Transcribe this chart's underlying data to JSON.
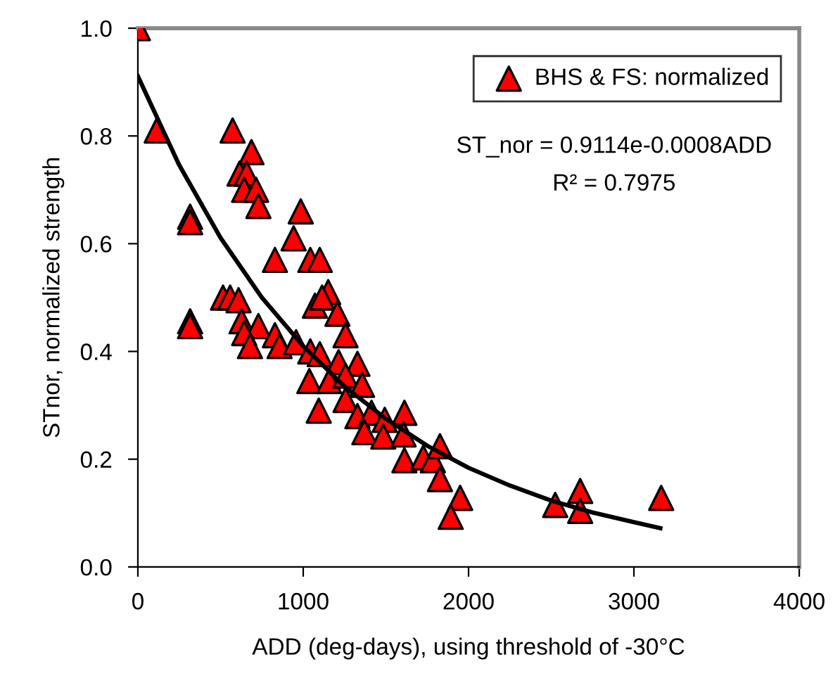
{
  "chart_data": {
    "type": "scatter",
    "xlabel": "ADD (deg-days), using threshold of -30°C",
    "ylabel": "STnor, normalized strength",
    "xlim": [
      0,
      4000
    ],
    "xticks": [
      0,
      1000,
      2000,
      3000,
      4000
    ],
    "ylim": [
      0,
      1
    ],
    "yticks": [
      {
        "value": 0,
        "label": "0.0"
      },
      {
        "value": 0.2,
        "label": "0.2"
      },
      {
        "value": 0.4,
        "label": "0.4"
      },
      {
        "value": 0.6,
        "label": "0.6"
      },
      {
        "value": 0.8,
        "label": "0.8"
      },
      {
        "value": 1,
        "label": "1.0"
      }
    ],
    "grid": false,
    "legend": "top right",
    "marker": "triangle",
    "annotations": [
      "ST_nor = 0.9114e-0.0008ADD",
      "R² = 0.7975"
    ],
    "series": [
      {
        "name": "BHS & FS: normalized",
        "color": "#ff0000",
        "x": [
          0,
          114,
          573,
          687,
          615,
          658,
          643,
          715,
          729,
          316,
          316,
          985,
          942,
          829,
          1043,
          1100,
          1151,
          1071,
          1114,
          1207,
          1256,
          316,
          316,
          515,
          558,
          609,
          627,
          729,
          643,
          678,
          829,
          857,
          957,
          1043,
          1100,
          1214,
          1328,
          1037,
          1157,
          1256,
          1356,
          1094,
          1256,
          1328,
          1413,
          1493,
          1612,
          1370,
          1484,
          1607,
          1612,
          1726,
          1784,
          1827,
          1827,
          1949,
          1892,
          2524,
          2675,
          2675,
          3165
        ],
        "values": [
          1.0,
          0.81,
          0.81,
          0.77,
          0.73,
          0.73,
          0.7,
          0.7,
          0.67,
          0.65,
          0.64,
          0.66,
          0.61,
          0.57,
          0.57,
          0.57,
          0.51,
          0.485,
          0.5,
          0.47,
          0.43,
          0.456,
          0.447,
          0.5,
          0.5,
          0.495,
          0.456,
          0.447,
          0.434,
          0.41,
          0.43,
          0.41,
          0.417,
          0.4,
          0.395,
          0.38,
          0.377,
          0.345,
          0.345,
          0.355,
          0.338,
          0.29,
          0.31,
          0.28,
          0.286,
          0.273,
          0.286,
          0.25,
          0.242,
          0.246,
          0.198,
          0.203,
          0.198,
          0.224,
          0.163,
          0.128,
          0.093,
          0.115,
          0.141,
          0.104,
          0.128
        ]
      },
      {
        "type": "line",
        "color": "#000000",
        "marker": "none",
        "line_style": "solid",
        "x": [
          0,
          250,
          500,
          750,
          1000,
          1250,
          1500,
          1750,
          2000,
          2250,
          2500,
          2750,
          3000,
          3160
        ],
        "values": [
          0.911,
          0.746,
          0.611,
          0.5,
          0.41,
          0.335,
          0.275,
          0.225,
          0.184,
          0.151,
          0.123,
          0.101,
          0.083,
          0.072
        ]
      }
    ]
  }
}
